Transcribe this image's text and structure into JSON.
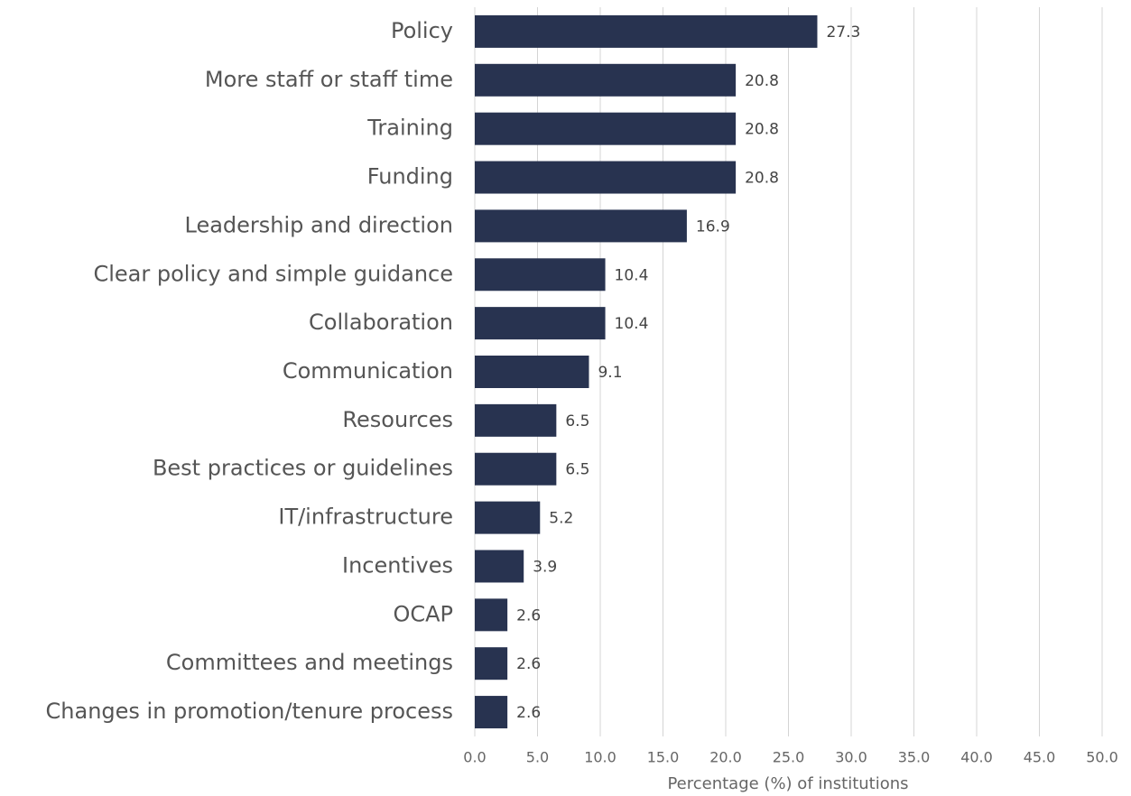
{
  "chart_data": {
    "type": "barh",
    "x_label": "Percentage (%) of institutions",
    "categories": [
      "Policy",
      "More staff or staff time",
      "Training",
      "Funding",
      "Leadership and direction",
      "Clear policy and simple guidance",
      "Collaboration",
      "Communication",
      "Resources",
      "Best practices or guidelines",
      "IT/infrastructure",
      "Incentives",
      "OCAP",
      "Committees and meetings",
      "Changes in promotion/tenure process"
    ],
    "values": [
      27.3,
      20.8,
      20.8,
      20.8,
      16.9,
      10.4,
      10.4,
      9.1,
      6.5,
      6.5,
      5.2,
      3.9,
      2.6,
      2.6,
      2.6
    ],
    "color": "#283350",
    "xlim": [
      0,
      50
    ],
    "xticks": [
      {
        "value": 0,
        "label": "0.0"
      },
      {
        "value": 5,
        "label": "5.0"
      },
      {
        "value": 10,
        "label": "10.0"
      },
      {
        "value": 15,
        "label": "15.0"
      },
      {
        "value": 20,
        "label": "20.0"
      },
      {
        "value": 25,
        "label": "25.0"
      },
      {
        "value": 30,
        "label": "30.0"
      },
      {
        "value": 35,
        "label": "35.0"
      },
      {
        "value": 40,
        "label": "40.0"
      },
      {
        "value": 45,
        "label": "45.0"
      },
      {
        "value": 50,
        "label": "50.0"
      }
    ],
    "grid": true
  }
}
